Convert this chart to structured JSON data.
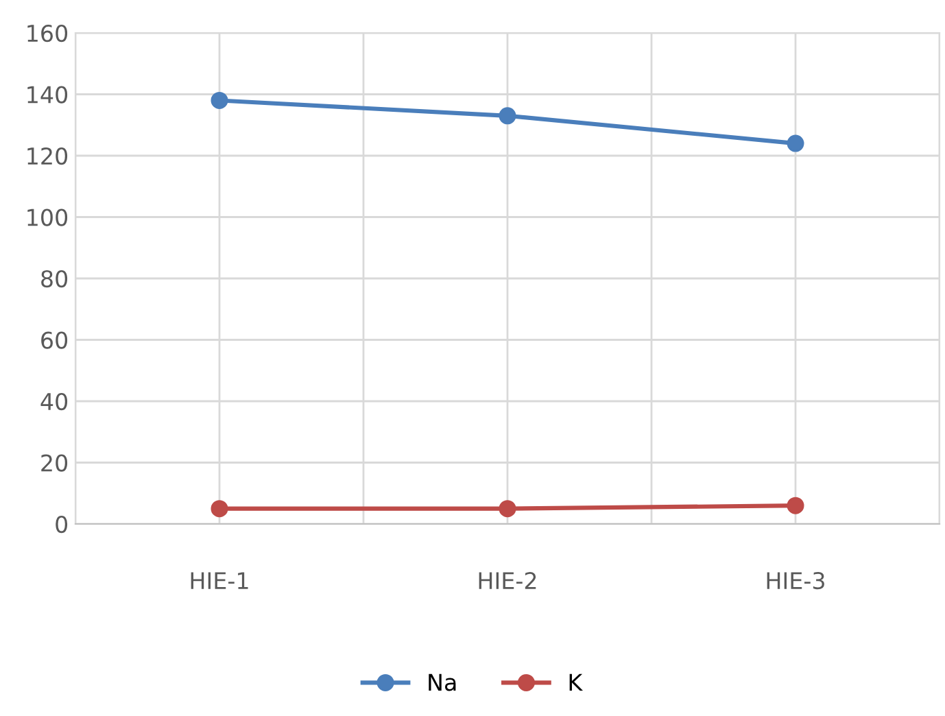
{
  "chart_data": {
    "type": "line",
    "categories": [
      "HIE-1",
      "HIE-2",
      "HIE-3"
    ],
    "series": [
      {
        "name": "Na",
        "color": "#4a7ebb",
        "values": [
          138,
          133,
          124
        ]
      },
      {
        "name": "K",
        "color": "#be4b48",
        "values": [
          5,
          5,
          6
        ]
      }
    ],
    "ylim": [
      0,
      160
    ],
    "yticks": [
      0,
      20,
      40,
      60,
      80,
      100,
      120,
      140,
      160
    ],
    "grid": true,
    "legend": "bottom",
    "marker": "circle",
    "line_style": "solid"
  }
}
